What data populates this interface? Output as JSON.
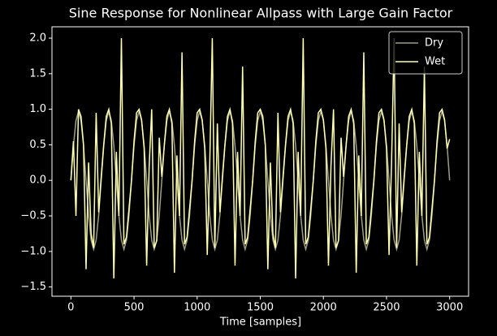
{
  "chart_data": {
    "type": "line",
    "title": "Sine Response for Nonlinear Allpass with Large Gain Factor",
    "x_label": "Time [samples]",
    "x": [
      0,
      20,
      40,
      60,
      80,
      100,
      120,
      140,
      160,
      180,
      200,
      220,
      240,
      260,
      280,
      300,
      320,
      340,
      360,
      380,
      400,
      420,
      440,
      460,
      480,
      500,
      520,
      540,
      560,
      580,
      600,
      620,
      640,
      660,
      680,
      700,
      720,
      740,
      760,
      780,
      800,
      820,
      840,
      860,
      880,
      900,
      920,
      940,
      960,
      980,
      1000,
      1020,
      1040,
      1060,
      1080,
      1100,
      1120,
      1140,
      1160,
      1180,
      1200,
      1220,
      1240,
      1260,
      1280,
      1300,
      1320,
      1340,
      1360,
      1380,
      1400,
      1420,
      1440,
      1460,
      1480,
      1500,
      1520,
      1540,
      1560,
      1580,
      1600,
      1620,
      1640,
      1660,
      1680,
      1700,
      1720,
      1740,
      1760,
      1780,
      1800,
      1820,
      1840,
      1860,
      1880,
      1900,
      1920,
      1940,
      1960,
      1980,
      2000,
      2020,
      2040,
      2060,
      2080,
      2100,
      2120,
      2140,
      2160,
      2180,
      2200,
      2220,
      2240,
      2260,
      2280,
      2300,
      2320,
      2340,
      2360,
      2380,
      2400,
      2420,
      2440,
      2460,
      2480,
      2500,
      2520,
      2540,
      2560,
      2580,
      2600,
      2620,
      2640,
      2660,
      2680,
      2700,
      2720,
      2740,
      2760,
      2780,
      2800,
      2820,
      2840,
      2860,
      2880,
      2900,
      2920,
      2940,
      2960,
      2980,
      3000
    ],
    "series": [
      {
        "name": "Dry",
        "color": "#9e9e86",
        "values": [
          0,
          0.49,
          0.84,
          0.97,
          0.84,
          0.49,
          0,
          -0.49,
          -0.84,
          -0.97,
          -0.84,
          -0.49,
          0,
          0.49,
          0.84,
          0.97,
          0.84,
          0.49,
          0,
          -0.49,
          -0.84,
          -0.97,
          -0.84,
          -0.49,
          0,
          0.49,
          0.84,
          0.97,
          0.84,
          0.49,
          0,
          -0.49,
          -0.84,
          -0.97,
          -0.84,
          -0.49,
          0,
          0.49,
          0.84,
          0.97,
          0.84,
          0.49,
          0,
          -0.49,
          -0.84,
          -0.97,
          -0.84,
          -0.49,
          0,
          0.49,
          0.84,
          0.97,
          0.84,
          0.49,
          0,
          -0.49,
          -0.84,
          -0.97,
          -0.84,
          -0.49,
          0,
          0.49,
          0.84,
          0.97,
          0.84,
          0.49,
          0,
          -0.49,
          -0.84,
          -0.97,
          -0.84,
          -0.49,
          0,
          0.49,
          0.84,
          0.97,
          0.84,
          0.49,
          0,
          -0.49,
          -0.84,
          -0.97,
          -0.84,
          -0.49,
          0,
          0.49,
          0.84,
          0.97,
          0.84,
          0.49,
          0,
          -0.49,
          -0.84,
          -0.97,
          -0.84,
          -0.49,
          0,
          0.49,
          0.84,
          0.97,
          0.84,
          0.49,
          0,
          -0.49,
          -0.84,
          -0.97,
          -0.84,
          -0.49,
          0,
          0.49,
          0.84,
          0.97,
          0.84,
          0.49,
          0,
          -0.49,
          -0.84,
          -0.97,
          -0.84,
          -0.49,
          0,
          0.49,
          0.84,
          0.97,
          0.84,
          0.49,
          0,
          -0.49,
          -0.84,
          -0.97,
          -0.84,
          -0.49,
          0,
          0.49,
          0.84,
          0.97,
          0.84,
          0.49,
          0,
          -0.49,
          -0.84,
          -0.97,
          -0.84,
          -0.49,
          0,
          0.49,
          0.84,
          0.97,
          0.84,
          0.49,
          0
        ]
      },
      {
        "name": "Wet",
        "color": "#ffffb3",
        "values": [
          0,
          0.55,
          -0.5,
          1.0,
          0.9,
          0.5,
          -1.25,
          0.25,
          -0.75,
          -0.95,
          0.95,
          -0.45,
          0.05,
          0.5,
          0.9,
          1.0,
          0.8,
          -1.38,
          0.4,
          -0.5,
          2.0,
          -0.9,
          -0.8,
          -0.4,
          0,
          0.55,
          0.95,
          1.0,
          0.85,
          0.45,
          -1.2,
          0.2,
          1.0,
          -0.95,
          -0.85,
          0.6,
          0.05,
          0.5,
          0.9,
          1.0,
          0.8,
          -1.3,
          0.35,
          -0.5,
          1.8,
          -0.9,
          -0.8,
          -0.4,
          0,
          0.55,
          0.95,
          1.0,
          0.85,
          0.45,
          -1.05,
          0.25,
          2.0,
          -0.95,
          0.8,
          -0.45,
          0.05,
          0.5,
          0.9,
          1.0,
          0.8,
          -1.2,
          0.4,
          -0.5,
          1.6,
          -0.9,
          -0.8,
          -0.4,
          0,
          0.55,
          0.95,
          1.0,
          0.9,
          0.5,
          -1.25,
          0.25,
          -0.75,
          -0.95,
          0.95,
          -0.45,
          0.05,
          0.5,
          0.9,
          1.0,
          0.8,
          -1.38,
          0.4,
          -0.5,
          2.0,
          -0.9,
          -0.8,
          -0.4,
          0,
          0.55,
          0.95,
          1.0,
          0.85,
          0.45,
          -1.2,
          0.2,
          1.0,
          -0.95,
          -0.85,
          0.6,
          0.05,
          0.5,
          0.9,
          1.0,
          0.8,
          -1.3,
          0.35,
          -0.5,
          1.8,
          -0.9,
          -0.8,
          -0.4,
          0,
          0.55,
          0.95,
          1.0,
          0.85,
          0.45,
          -1.05,
          0.25,
          2.0,
          -0.95,
          0.8,
          -0.45,
          0.05,
          0.5,
          0.9,
          1.0,
          0.8,
          -1.2,
          0.4,
          -0.5,
          1.6,
          -0.9,
          -0.8,
          -0.4,
          0,
          0.55,
          0.95,
          1.0,
          0.85,
          0.45,
          0.58
        ]
      }
    ],
    "xlim": [
      -150,
      3150
    ],
    "ylim": [
      -1.63,
      2.16
    ],
    "xticks": [
      0,
      500,
      1000,
      1500,
      2000,
      2500,
      3000
    ],
    "yticks": [
      {
        "value": -1.5,
        "label": "−1.5"
      },
      {
        "value": -1.0,
        "label": "−1.0"
      },
      {
        "value": -0.5,
        "label": "−0.5"
      },
      {
        "value": 0,
        "label": "0.0"
      },
      {
        "value": 0.5,
        "label": "0.5"
      },
      {
        "value": 1.0,
        "label": "1.0"
      },
      {
        "value": 1.5,
        "label": "1.5"
      },
      {
        "value": 2.0,
        "label": "2.0"
      }
    ],
    "legend": "upper right"
  }
}
